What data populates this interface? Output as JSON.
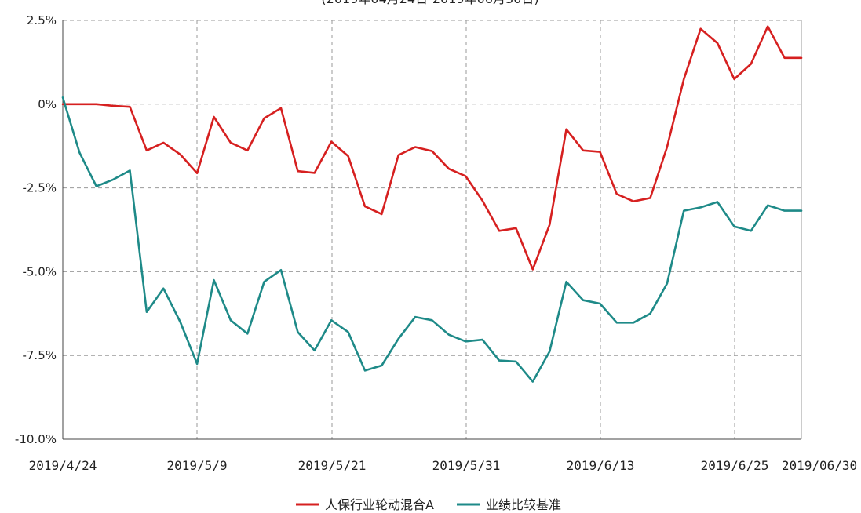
{
  "chart_data": {
    "type": "line",
    "title": "",
    "subtitle": "(2019年04月24日-2019年06月30日)",
    "xlabel": "",
    "ylabel": "",
    "ylim": [
      -10.0,
      2.5
    ],
    "y_ticks": [
      "2.5%",
      "0%",
      "-2.5%",
      "-5.0%",
      "-7.5%",
      "-10.0%"
    ],
    "y_tick_values": [
      2.5,
      0,
      -2.5,
      -5.0,
      -7.5,
      -10.0
    ],
    "x_tick_labels": [
      "2019/4/24",
      "2019/5/9",
      "2019/5/21",
      "2019/5/31",
      "2019/6/13",
      "2019/6/25",
      "2019/06/30"
    ],
    "grid": true,
    "legend_position": "bottom",
    "series": [
      {
        "name": "人保行业轮动混合A",
        "color": "#d62020",
        "values": [
          0.0,
          0.0,
          0.0,
          -0.05,
          -0.08,
          -1.38,
          -1.15,
          -1.5,
          -2.06,
          -0.38,
          -1.15,
          -1.38,
          -0.42,
          -0.12,
          -2.0,
          -2.05,
          -1.12,
          -1.55,
          -3.05,
          -3.28,
          -1.52,
          -1.28,
          -1.4,
          -1.93,
          -2.15,
          -2.88,
          -3.78,
          -3.7,
          -4.93,
          -3.6,
          -0.75,
          -1.38,
          -1.42,
          -2.68,
          -2.9,
          -2.8,
          -1.28,
          0.75,
          2.25,
          1.82,
          0.75,
          1.2,
          2.32,
          1.38,
          1.38
        ]
      },
      {
        "name": "业绩比较基准",
        "color": "#1e8a88",
        "values": [
          0.2,
          -1.45,
          -2.45,
          -2.25,
          -1.98,
          -6.2,
          -5.5,
          -6.5,
          -7.75,
          -5.25,
          -6.45,
          -6.85,
          -5.3,
          -4.95,
          -6.8,
          -7.35,
          -6.45,
          -6.8,
          -7.95,
          -7.8,
          -7.0,
          -6.35,
          -6.45,
          -6.88,
          -7.08,
          -7.03,
          -7.65,
          -7.68,
          -8.28,
          -7.38,
          -5.3,
          -5.85,
          -5.95,
          -6.52,
          -6.52,
          -6.25,
          -5.35,
          -3.18,
          -3.08,
          -2.92,
          -3.65,
          -3.78,
          -3.02,
          -3.18,
          -3.18
        ]
      }
    ]
  }
}
